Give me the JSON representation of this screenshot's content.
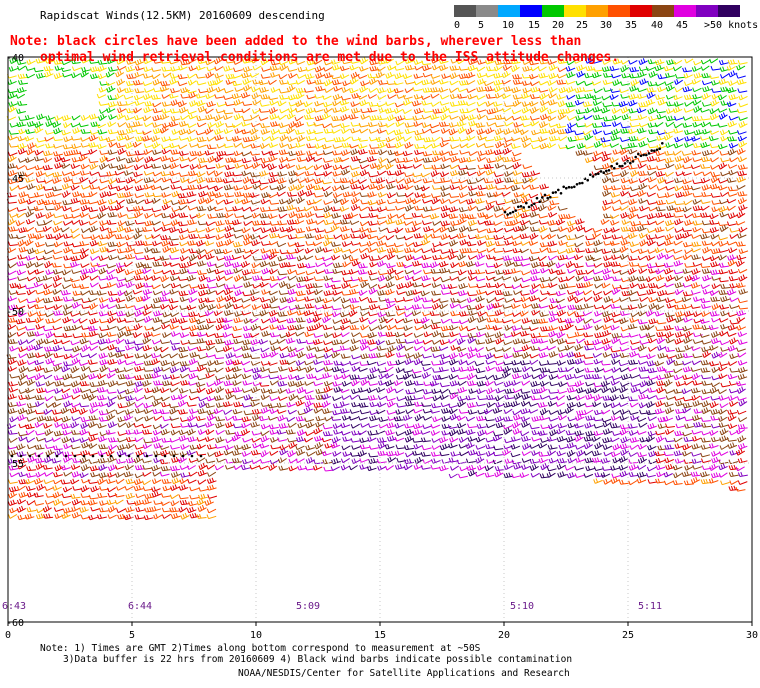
{
  "title": "Rapidscat Winds(12.5KM) 20160609 descending",
  "note_line1": "Note: black circles have been added to the wind barbs, wherever less than",
  "note_line2": "optimal wind retrieval conditions are met due to the ISS attitude changes.",
  "legend": {
    "labels": [
      "0",
      "5",
      "10",
      "15",
      "20",
      "25",
      "30",
      "35",
      "40",
      "45",
      ">50 knots"
    ],
    "colors": [
      "#555555",
      "#8a8a8a",
      "#00a8ff",
      "#0000ff",
      "#00c800",
      "#ffe000",
      "#ffa000",
      "#ff5000",
      "#e00000",
      "#8b4513",
      "#e000e0",
      "#8000c0",
      "#300060"
    ]
  },
  "axes": {
    "x_ticks": [
      "0",
      "5",
      "10",
      "15",
      "20",
      "25",
      "30"
    ],
    "y_ticks": [
      "-40",
      "-45",
      "-50",
      "-55",
      "-60"
    ]
  },
  "pass_times": [
    "6:43",
    "6:44",
    "5:09",
    "5:10",
    "5:11"
  ],
  "footer": {
    "line1": "Note: 1) Times are GMT 2)Times along bottom correspond to measurement at ~50S",
    "line2": "3)Data buffer is 22 hrs from 20160609 4) Black wind barbs indicate possible contamination",
    "line3": "NOAA/NESDIS/Center for Satellite Applications and Research"
  }
}
